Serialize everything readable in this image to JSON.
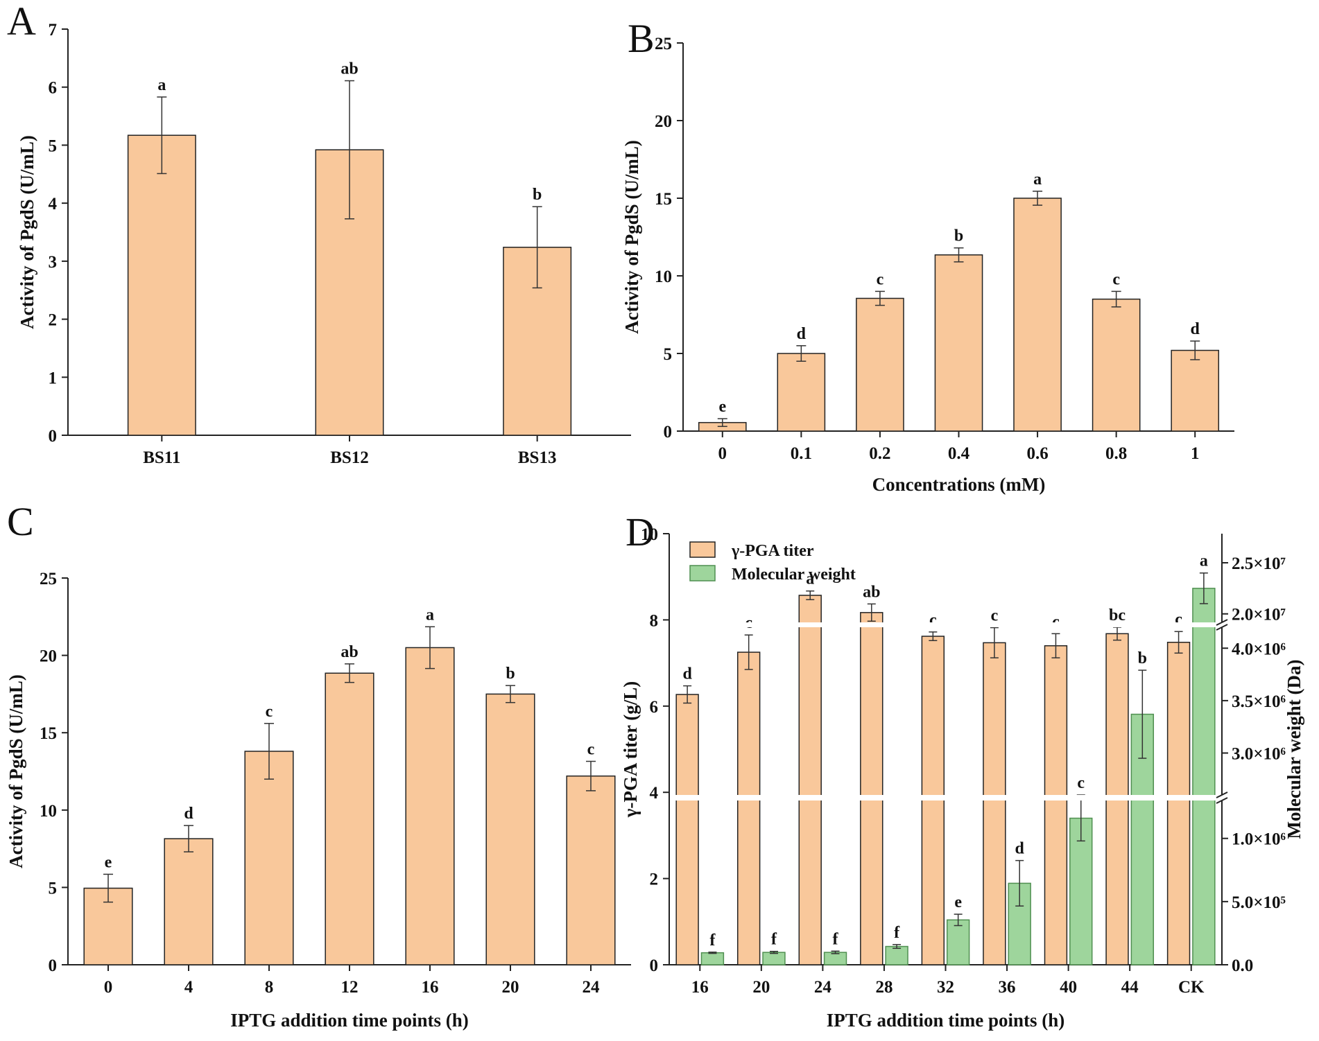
{
  "chart_data": [
    {
      "panel": "A",
      "type": "bar",
      "title": "",
      "xlabel": "",
      "ylabel": "Activity of PgdS (U/mL)",
      "categories": [
        "BS11",
        "BS12",
        "BS13"
      ],
      "values": [
        5.17,
        4.92,
        3.24
      ],
      "errors": [
        0.66,
        1.19,
        0.7
      ],
      "letters": [
        "a",
        "ab",
        "b"
      ],
      "ylim": [
        0,
        7
      ],
      "yticks": [
        0,
        1,
        2,
        3,
        4,
        5,
        6,
        7
      ],
      "color": "#f9c89b"
    },
    {
      "panel": "B",
      "type": "bar",
      "title": "",
      "xlabel": "Concentrations (mM)",
      "ylabel": "Activity of PgdS (U/mL)",
      "categories": [
        "0",
        "0.1",
        "0.2",
        "0.4",
        "0.6",
        "0.8",
        "1"
      ],
      "values": [
        0.55,
        5.0,
        8.55,
        11.35,
        15.0,
        8.5,
        5.2
      ],
      "errors": [
        0.25,
        0.5,
        0.45,
        0.45,
        0.45,
        0.5,
        0.6
      ],
      "letters": [
        "e",
        "d",
        "c",
        "b",
        "a",
        "c",
        "d"
      ],
      "ylim": [
        0,
        25
      ],
      "yticks": [
        0,
        5,
        10,
        15,
        20,
        25
      ],
      "color": "#f9c89b"
    },
    {
      "panel": "C",
      "type": "bar",
      "title": "",
      "xlabel": "IPTG addition time points (h)",
      "ylabel": "Activity of PgdS (U/mL)",
      "categories": [
        "0",
        "4",
        "8",
        "12",
        "16",
        "20",
        "24"
      ],
      "values": [
        4.95,
        8.15,
        13.8,
        18.85,
        20.5,
        17.5,
        12.2
      ],
      "errors": [
        0.9,
        0.85,
        1.8,
        0.6,
        1.35,
        0.55,
        0.95
      ],
      "letters": [
        "e",
        "d",
        "c",
        "ab",
        "a",
        "b",
        "c"
      ],
      "ylim": [
        0,
        25
      ],
      "yticks": [
        0,
        5,
        10,
        15,
        20,
        25
      ],
      "color": "#f9c89b"
    },
    {
      "panel": "D",
      "type": "bar",
      "title": "",
      "xlabel": "IPTG addition time points (h)",
      "ylabel": "γ-PGA titer (g/L)",
      "y2label": "Molecular weight (Da)",
      "categories": [
        "16",
        "20",
        "24",
        "28",
        "32",
        "36",
        "40",
        "44",
        "CK"
      ],
      "ylim": [
        0,
        10
      ],
      "yticks": [
        0,
        2,
        4,
        6,
        8,
        10
      ],
      "y2_segments": [
        {
          "range": [
            0,
            1300000
          ],
          "ticks": [
            0,
            500000,
            1000000
          ],
          "tick_labels": [
            "0.0",
            "5.0×10⁵",
            "1.0×10⁶"
          ]
        },
        {
          "range": [
            2600000,
            4200000
          ],
          "ticks": [
            3000000,
            3500000,
            4000000
          ],
          "tick_labels": [
            "3.0×10⁶",
            "3.5×10⁶",
            "4.0×10⁶"
          ]
        },
        {
          "range": [
            19500000,
            23000000
          ],
          "ticks": [
            20000000,
            25000000
          ],
          "tick_labels": [
            "2.0×10⁷",
            "2.5×10⁷"
          ]
        }
      ],
      "series": [
        {
          "name": "γ-PGA titer",
          "axis": "left",
          "color": "#f9c89b",
          "values": [
            6.27,
            7.25,
            8.57,
            8.17,
            7.62,
            7.47,
            7.4,
            7.68,
            7.48
          ],
          "errors": [
            0.2,
            0.4,
            0.1,
            0.2,
            0.1,
            0.35,
            0.28,
            0.15,
            0.25
          ],
          "letters": [
            "d",
            "c",
            "a",
            "ab",
            "c",
            "c",
            "c",
            "bc",
            "c"
          ]
        },
        {
          "name": "Molecular weight",
          "axis": "right",
          "color": "#9ed59c",
          "values": [
            95000,
            98000,
            98000,
            145000,
            355000,
            645000,
            1160000,
            3370000,
            21500000
          ],
          "errors": [
            5000,
            8000,
            10000,
            15000,
            45000,
            180000,
            180000,
            420000,
            900000
          ],
          "letters": [
            "f",
            "f",
            "f",
            "f",
            "e",
            "d",
            "c",
            "b",
            "a"
          ]
        }
      ]
    }
  ]
}
